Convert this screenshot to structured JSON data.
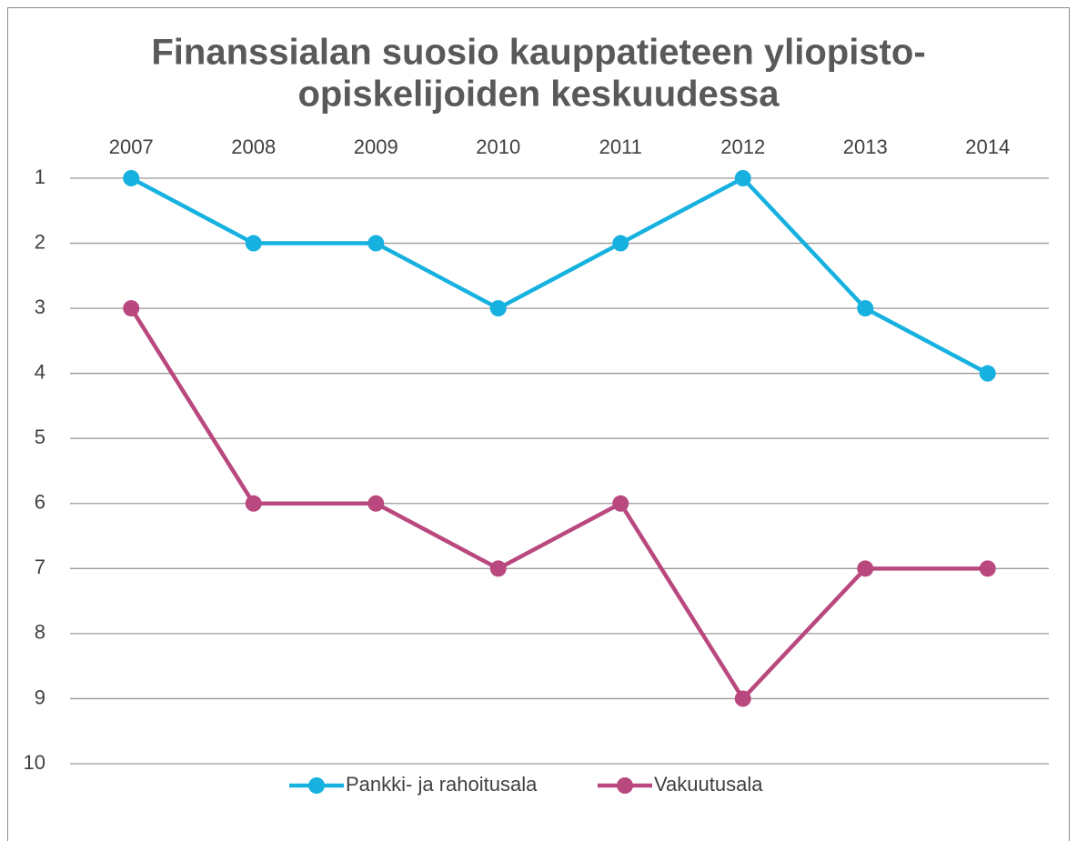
{
  "chart_data": {
    "type": "line",
    "title": [
      "Finanssialan suosio kauppatieteen yliopisto-",
      "opiskelijoiden keskuudessa"
    ],
    "categories": [
      "2007",
      "2008",
      "2009",
      "2010",
      "2011",
      "2012",
      "2013",
      "2014"
    ],
    "series": [
      {
        "name": "Pankki- ja rahoitusala",
        "color": "#17b1e0",
        "values": [
          1,
          2,
          2,
          3,
          2,
          1,
          3,
          4
        ]
      },
      {
        "name": "Vakuutusala",
        "color": "#b9487f",
        "values": [
          3,
          6,
          6,
          7,
          6,
          9,
          7,
          7
        ]
      }
    ],
    "ylim": [
      1,
      10
    ],
    "yticks": [
      1,
      2,
      3,
      4,
      5,
      6,
      7,
      8,
      9,
      10
    ],
    "y_inverted": true,
    "grid": true,
    "legend": "bottom"
  }
}
